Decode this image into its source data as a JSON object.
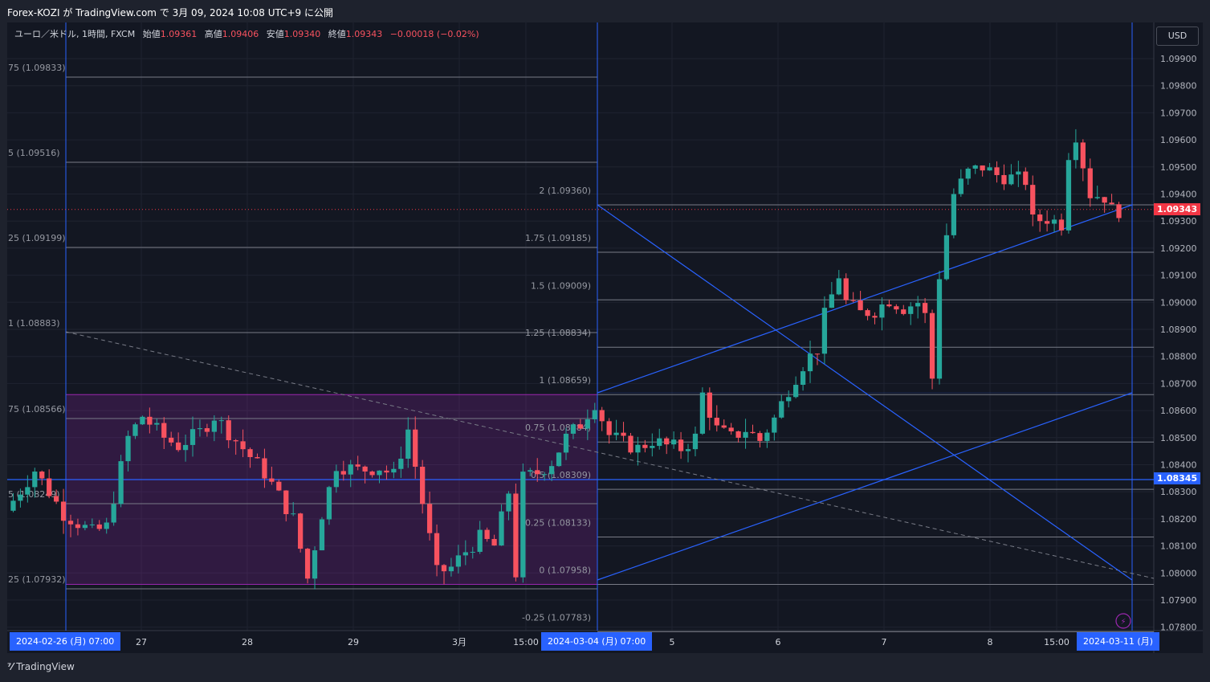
{
  "header": {
    "publish_text": "Forex-KOZI が TradingView.com で 3月 09, 2024 10:08 UTC+9 に公開"
  },
  "legend": {
    "symbol": "ユーロ／米ドル, 1時間, FXCM",
    "open_label": "始値",
    "open": "1.09361",
    "high_label": "高値",
    "high": "1.09406",
    "low_label": "安値",
    "low": "1.09340",
    "close_label": "終値",
    "close": "1.09343",
    "change": "−0.00018 (−0.02%)"
  },
  "currency_button": "USD",
  "price_badges": {
    "last": "1.09343",
    "line": "1.08345"
  },
  "date_badges": {
    "left": "2024-02-26 (月)   07:00",
    "mid": "2024-03-04 (月)   07:00",
    "right": "2024-03-11 (月)"
  },
  "footer": {
    "logo": "⁷⁄",
    "brand": "TradingView"
  },
  "colors": {
    "up": "#26a69a",
    "down": "#f7525f",
    "accent": "#2962ff",
    "zone": "#9c27b0"
  },
  "chart_data": {
    "type": "candlestick",
    "symbol": "EUR/USD",
    "interval": "1h",
    "ylim": [
      1.0776,
      1.0995
    ],
    "y_ticks": [
      "1.09900",
      "1.09800",
      "1.09700",
      "1.09600",
      "1.09500",
      "1.09400",
      "1.09300",
      "1.09200",
      "1.09100",
      "1.09000",
      "1.08900",
      "1.08800",
      "1.08700",
      "1.08600",
      "1.08500",
      "1.08400",
      "1.08300",
      "1.08200",
      "1.08100",
      "1.08000",
      "1.07900",
      "1.07800"
    ],
    "x_ticks": [
      "27",
      "28",
      "29",
      "3月",
      "15:00",
      "5",
      "6",
      "7",
      "8",
      "15:00"
    ],
    "fib_left": [
      {
        "label": "75 (1.09833)",
        "price": 1.09833
      },
      {
        "label": "5 (1.09516)",
        "price": 1.09516
      },
      {
        "label": "25 (1.09199)",
        "price": 1.09199
      },
      {
        "label": "1 (1.08883)",
        "price": 1.08883
      },
      {
        "label": "75 (1.08566)",
        "price": 1.08566
      },
      {
        "label": "5 (1.08249)",
        "price": 1.08249
      },
      {
        "label": "25 (1.07932)",
        "price": 1.07932
      }
    ],
    "fib_right": [
      {
        "label": "2 (1.09360)",
        "price": 1.0936
      },
      {
        "label": "1.75 (1.09185)",
        "price": 1.09185
      },
      {
        "label": "1.5 (1.09009)",
        "price": 1.09009
      },
      {
        "label": "1.25 (1.08834)",
        "price": 1.08834
      },
      {
        "label": "1 (1.08659)",
        "price": 1.08659
      },
      {
        "label": "0.75 (1.08484)",
        "price": 1.08484
      },
      {
        "label": "0.5 (1.08309)",
        "price": 1.08309
      },
      {
        "label": "0.25 (1.08133)",
        "price": 1.08133
      },
      {
        "label": "0 (1.07958)",
        "price": 1.07958
      },
      {
        "label": "-0.25 (1.07783)",
        "price": 1.07783
      }
    ],
    "horizontal_line": 1.08345,
    "last_price": 1.09343,
    "zone": {
      "top": 1.08659,
      "bottom": 1.07958
    },
    "path": [
      [
        0,
        1.0823
      ],
      [
        4,
        1.0838
      ],
      [
        8,
        1.0822
      ],
      [
        12,
        1.0815
      ],
      [
        14,
        1.0817
      ],
      [
        17,
        1.085
      ],
      [
        19,
        1.0858
      ],
      [
        22,
        1.085
      ],
      [
        24,
        1.0847
      ],
      [
        27,
        1.0852
      ],
      [
        29,
        1.0858
      ],
      [
        31,
        1.0852
      ],
      [
        33,
        1.0846
      ],
      [
        36,
        1.0837
      ],
      [
        40,
        1.082
      ],
      [
        42,
        1.0798
      ],
      [
        44,
        1.0822
      ],
      [
        46,
        1.084
      ],
      [
        49,
        1.0838
      ],
      [
        52,
        1.0839
      ],
      [
        54,
        1.0836
      ],
      [
        56,
        1.0853
      ],
      [
        58,
        1.0826
      ],
      [
        60,
        1.08
      ],
      [
        62,
        1.0802
      ],
      [
        64,
        1.0808
      ],
      [
        66,
        1.0813
      ],
      [
        68,
        1.081
      ],
      [
        70,
        1.083
      ],
      [
        71,
        1.08
      ],
      [
        72,
        1.0835
      ],
      [
        74,
        1.0837
      ],
      [
        76,
        1.0841
      ],
      [
        78,
        1.085
      ],
      [
        80,
        1.0855
      ],
      [
        82,
        1.0863
      ],
      [
        84,
        1.0851
      ],
      [
        86,
        1.0848
      ],
      [
        88,
        1.0846
      ],
      [
        90,
        1.0849
      ],
      [
        92,
        1.0847
      ],
      [
        94,
        1.0846
      ],
      [
        96,
        1.085
      ],
      [
        97,
        1.0866
      ],
      [
        99,
        1.0853
      ],
      [
        101,
        1.085
      ],
      [
        103,
        1.0853
      ],
      [
        105,
        1.0849
      ],
      [
        107,
        1.0857
      ],
      [
        109,
        1.0868
      ],
      [
        111,
        1.0877
      ],
      [
        113,
        1.0883
      ],
      [
        114,
        1.0895
      ],
      [
        116,
        1.091
      ],
      [
        117,
        1.09
      ],
      [
        119,
        1.0896
      ],
      [
        121,
        1.0897
      ],
      [
        123,
        1.0901
      ],
      [
        125,
        1.0898
      ],
      [
        127,
        1.09
      ],
      [
        128,
        1.0895
      ],
      [
        129,
        1.0872
      ],
      [
        130,
        1.091
      ],
      [
        132,
        1.094
      ],
      [
        134,
        1.0948
      ],
      [
        136,
        1.095
      ],
      [
        138,
        1.0947
      ],
      [
        140,
        1.0946
      ],
      [
        142,
        1.0945
      ],
      [
        143,
        1.093
      ],
      [
        145,
        1.0931
      ],
      [
        147,
        1.0929
      ],
      [
        148,
        1.0955
      ],
      [
        149,
        1.0962
      ],
      [
        151,
        1.094
      ],
      [
        153,
        1.0939
      ],
      [
        154,
        1.0934
      ]
    ]
  }
}
